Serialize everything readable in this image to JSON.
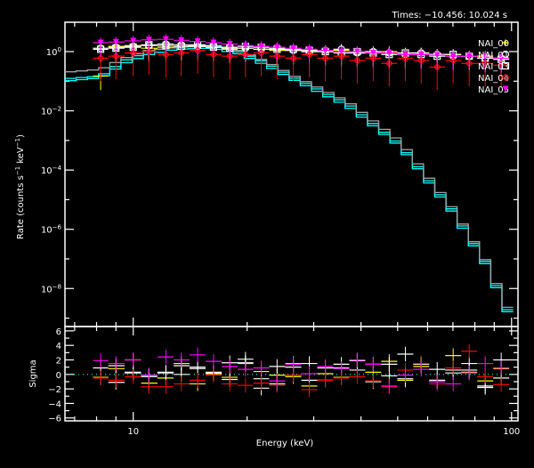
{
  "chart_data": [
    {
      "type": "scatter",
      "title": "Times: −10.456: 10.024 s",
      "xlabel": "",
      "ylabel": "Rate (counts s^-1 keV^-1)",
      "ylabel_parts": {
        "main": "Rate (counts s",
        "e1": "−1",
        "mid": " keV",
        "e2": "−1",
        "end": ")"
      },
      "x_scale": "log",
      "y_scale": "log",
      "xlim": [
        6.6,
        104
      ],
      "ylim": [
        5.2e-10,
        9.8
      ],
      "y_tick_labels": [
        {
          "value": 1,
          "base": "10",
          "exp": "0"
        },
        {
          "value": 0.01,
          "base": "10",
          "exp": "−2"
        },
        {
          "value": 0.0001,
          "base": "10",
          "exp": "−4"
        },
        {
          "value": 1e-06,
          "base": "10",
          "exp": "−6"
        },
        {
          "value": 1e-08,
          "base": "10",
          "exp": "−8"
        }
      ],
      "legend_position": "top-right",
      "energies": [
        8.2,
        9.0,
        10.0,
        11.0,
        12.2,
        13.4,
        14.8,
        16.3,
        18.0,
        19.8,
        21.8,
        24.0,
        26.5,
        29.2,
        32.2,
        35.5,
        39.1,
        43.1,
        47.5,
        52.4,
        57.7,
        63.6,
        70.1,
        77.3,
        85.2,
        93.9
      ],
      "series": [
        {
          "name": "NAI_00",
          "color": "#ffff00",
          "marker": "plus",
          "values": [
            0.15,
            1.5,
            1.6,
            1.3,
            1.4,
            1.5,
            1.6,
            1.4,
            1.2,
            1.3,
            1.2,
            1.1,
            1.1,
            1.0,
            1.0,
            1.1,
            0.9,
            0.9,
            1.0,
            0.8,
            0.9,
            0.8,
            0.8,
            0.7,
            0.7,
            0.6
          ]
        },
        {
          "name": "NAI_01",
          "color": "#ffffff",
          "marker": "circle",
          "values": [
            1.3,
            1.4,
            1.5,
            1.6,
            1.8,
            1.7,
            1.5,
            1.6,
            1.4,
            1.3,
            1.2,
            1.3,
            1.1,
            1.0,
            1.1,
            1.2,
            0.9,
            1.0,
            0.9,
            0.8,
            0.9,
            0.8,
            0.7,
            0.7,
            0.6,
            0.6
          ]
        },
        {
          "name": "NAI_03",
          "color": "#ffffff",
          "marker": "square",
          "values": [
            1.2,
            1.3,
            1.4,
            1.7,
            1.6,
            1.5,
            1.7,
            1.4,
            1.3,
            1.5,
            1.4,
            1.2,
            1.2,
            1.1,
            1.0,
            0.9,
            1.0,
            0.9,
            0.8,
            0.9,
            0.8,
            0.7,
            0.8,
            0.7,
            0.6,
            0.55
          ]
        },
        {
          "name": "NAI_04",
          "color": "#ff0000",
          "marker": "diamond",
          "values": [
            0.6,
            0.7,
            0.9,
            1.0,
            0.8,
            0.9,
            1.1,
            0.8,
            0.7,
            0.8,
            0.9,
            0.7,
            0.6,
            0.8,
            0.6,
            0.7,
            0.5,
            0.6,
            0.4,
            0.6,
            0.5,
            0.3,
            0.5,
            0.4,
            0.4,
            0.35
          ]
        },
        {
          "name": "NAI_05",
          "color": "#ff00ff",
          "marker": "triangle-down",
          "values": [
            2.0,
            2.1,
            2.3,
            2.5,
            2.6,
            2.4,
            2.2,
            2.0,
            1.8,
            1.6,
            1.5,
            1.4,
            1.3,
            1.2,
            1.1,
            1.0,
            1.0,
            0.9,
            0.9,
            0.8,
            0.8,
            0.75,
            0.7,
            0.7,
            0.65,
            0.6
          ]
        }
      ],
      "models": [
        {
          "color": "#00ffff",
          "points": [
            [
              6.6,
              0.12
            ],
            [
              8.2,
              0.15
            ],
            [
              9.5,
              0.5
            ],
            [
              11,
              1.0
            ],
            [
              13,
              1.5
            ],
            [
              16,
              1.6
            ],
            [
              19,
              1.0
            ],
            [
              22.6,
              0.4
            ],
            [
              26.6,
              0.13
            ],
            [
              37,
              0.017
            ],
            [
              50.9,
              0.0007
            ],
            [
              70,
              4.3e-06
            ],
            [
              85,
              8.7e-08
            ],
            [
              100,
              1e-09
            ]
          ]
        },
        {
          "color": "#00ffff",
          "points": [
            [
              6.6,
              0.1
            ],
            [
              8.2,
              0.13
            ],
            [
              9.5,
              0.4
            ],
            [
              11,
              0.8
            ],
            [
              13,
              1.2
            ],
            [
              16,
              1.3
            ],
            [
              19,
              0.85
            ],
            [
              22.6,
              0.33
            ],
            [
              26.6,
              0.11
            ],
            [
              37,
              0.014
            ],
            [
              50.9,
              0.0006
            ],
            [
              70,
              3.6e-06
            ],
            [
              85,
              7.3e-08
            ],
            [
              100,
              8.5e-10
            ]
          ]
        },
        {
          "color": "#a0a0a0",
          "points": [
            [
              6.6,
              0.2
            ],
            [
              8.2,
              0.25
            ],
            [
              9.5,
              0.6
            ],
            [
              11,
              1.1
            ],
            [
              13,
              1.4
            ],
            [
              16,
              1.5
            ],
            [
              19,
              1.1
            ],
            [
              22.6,
              0.45
            ],
            [
              26.6,
              0.15
            ],
            [
              37,
              0.02
            ],
            [
              50.9,
              0.0009
            ],
            [
              70,
              5e-06
            ],
            [
              85,
              1e-07
            ],
            [
              100,
              1.2e-09
            ]
          ]
        }
      ]
    },
    {
      "type": "scatter",
      "xlabel": "Energy (keV)",
      "ylabel": "Sigma",
      "x_scale": "log",
      "xlim": [
        6.6,
        104
      ],
      "ylim": [
        -6.4,
        6.6
      ],
      "x_tick_labels": [
        {
          "value": 10,
          "label": "10"
        },
        {
          "value": 100,
          "label": "100"
        }
      ],
      "y_tick_labels": [
        {
          "value": 6,
          "label": "6"
        },
        {
          "value": 4,
          "label": "4"
        },
        {
          "value": 2,
          "label": "2"
        },
        {
          "value": 0,
          "label": "0"
        },
        {
          "value": -2,
          "label": "−2"
        },
        {
          "value": -4,
          "label": "−4"
        },
        {
          "value": -6,
          "label": "−6"
        }
      ],
      "zero_line_color": "#00ffff",
      "series": [
        {
          "name": "NAI_00",
          "color": "#ffff00",
          "values": [
            -0.4,
            0.8,
            2.0,
            -1.2,
            -0.5,
            1.5,
            -1.3,
            0.1,
            -0.4,
            1.5,
            0.4,
            -0.1,
            -0.3,
            -1.6,
            0.1,
            -0.4,
            1.9,
            0.3,
            1.8,
            -0.8,
            1.1,
            -1.0,
            2.6,
            0.3,
            -0.9,
            0.8
          ]
        },
        {
          "name": "NAI_01",
          "color": "#ffffff",
          "values": [
            0.9,
            1.2,
            0.2,
            -0.1,
            0.2,
            1.2,
            1.0,
            0.2,
            -0.7,
            2.1,
            -1.9,
            -1.3,
            1.0,
            1.5,
            -0.8,
            0.9,
            1.9,
            1.4,
            -0.2,
            2.8,
            1.4,
            0.7,
            0.6,
            0.6,
            -1.8,
            2.0
          ]
        },
        {
          "name": "NAI_03",
          "color": "#ffffff",
          "values": [
            -0.5,
            -1.1,
            0.3,
            -0.3,
            0.3,
            0.0,
            0.8,
            0.3,
            1.6,
            1.6,
            -0.6,
            1.1,
            1.5,
            -0.8,
            0.9,
            1.4,
            0.6,
            -1.0,
            1.4,
            -0.6,
            1.5,
            -0.8,
            0.2,
            1.5,
            -1.6,
            -0.5
          ]
        },
        {
          "name": "NAI_04",
          "color": "#ff0000",
          "values": [
            -0.5,
            -0.8,
            -0.3,
            -1.7,
            -1.7,
            -1.3,
            -0.8,
            -0.1,
            -1.3,
            -1.5,
            -1.2,
            -1.5,
            -0.1,
            -2.1,
            -0.8,
            -0.5,
            -0.3,
            -0.9,
            -1.7,
            0.6,
            1.5,
            -1.3,
            0.9,
            3.2,
            -0.3,
            -1.4
          ]
        },
        {
          "name": "NAI_05",
          "color": "#ff00ff",
          "values": [
            1.9,
            1.5,
            2.0,
            -0.1,
            2.4,
            2.0,
            2.7,
            1.8,
            1.1,
            0.7,
            0.9,
            -0.9,
            1.4,
            0.1,
            1.1,
            0.8,
            2.0,
            1.4,
            -1.6,
            -0.1,
            0.7,
            -1.0,
            -1.3,
            0.2,
            1.5,
            0.9
          ]
        }
      ]
    }
  ]
}
